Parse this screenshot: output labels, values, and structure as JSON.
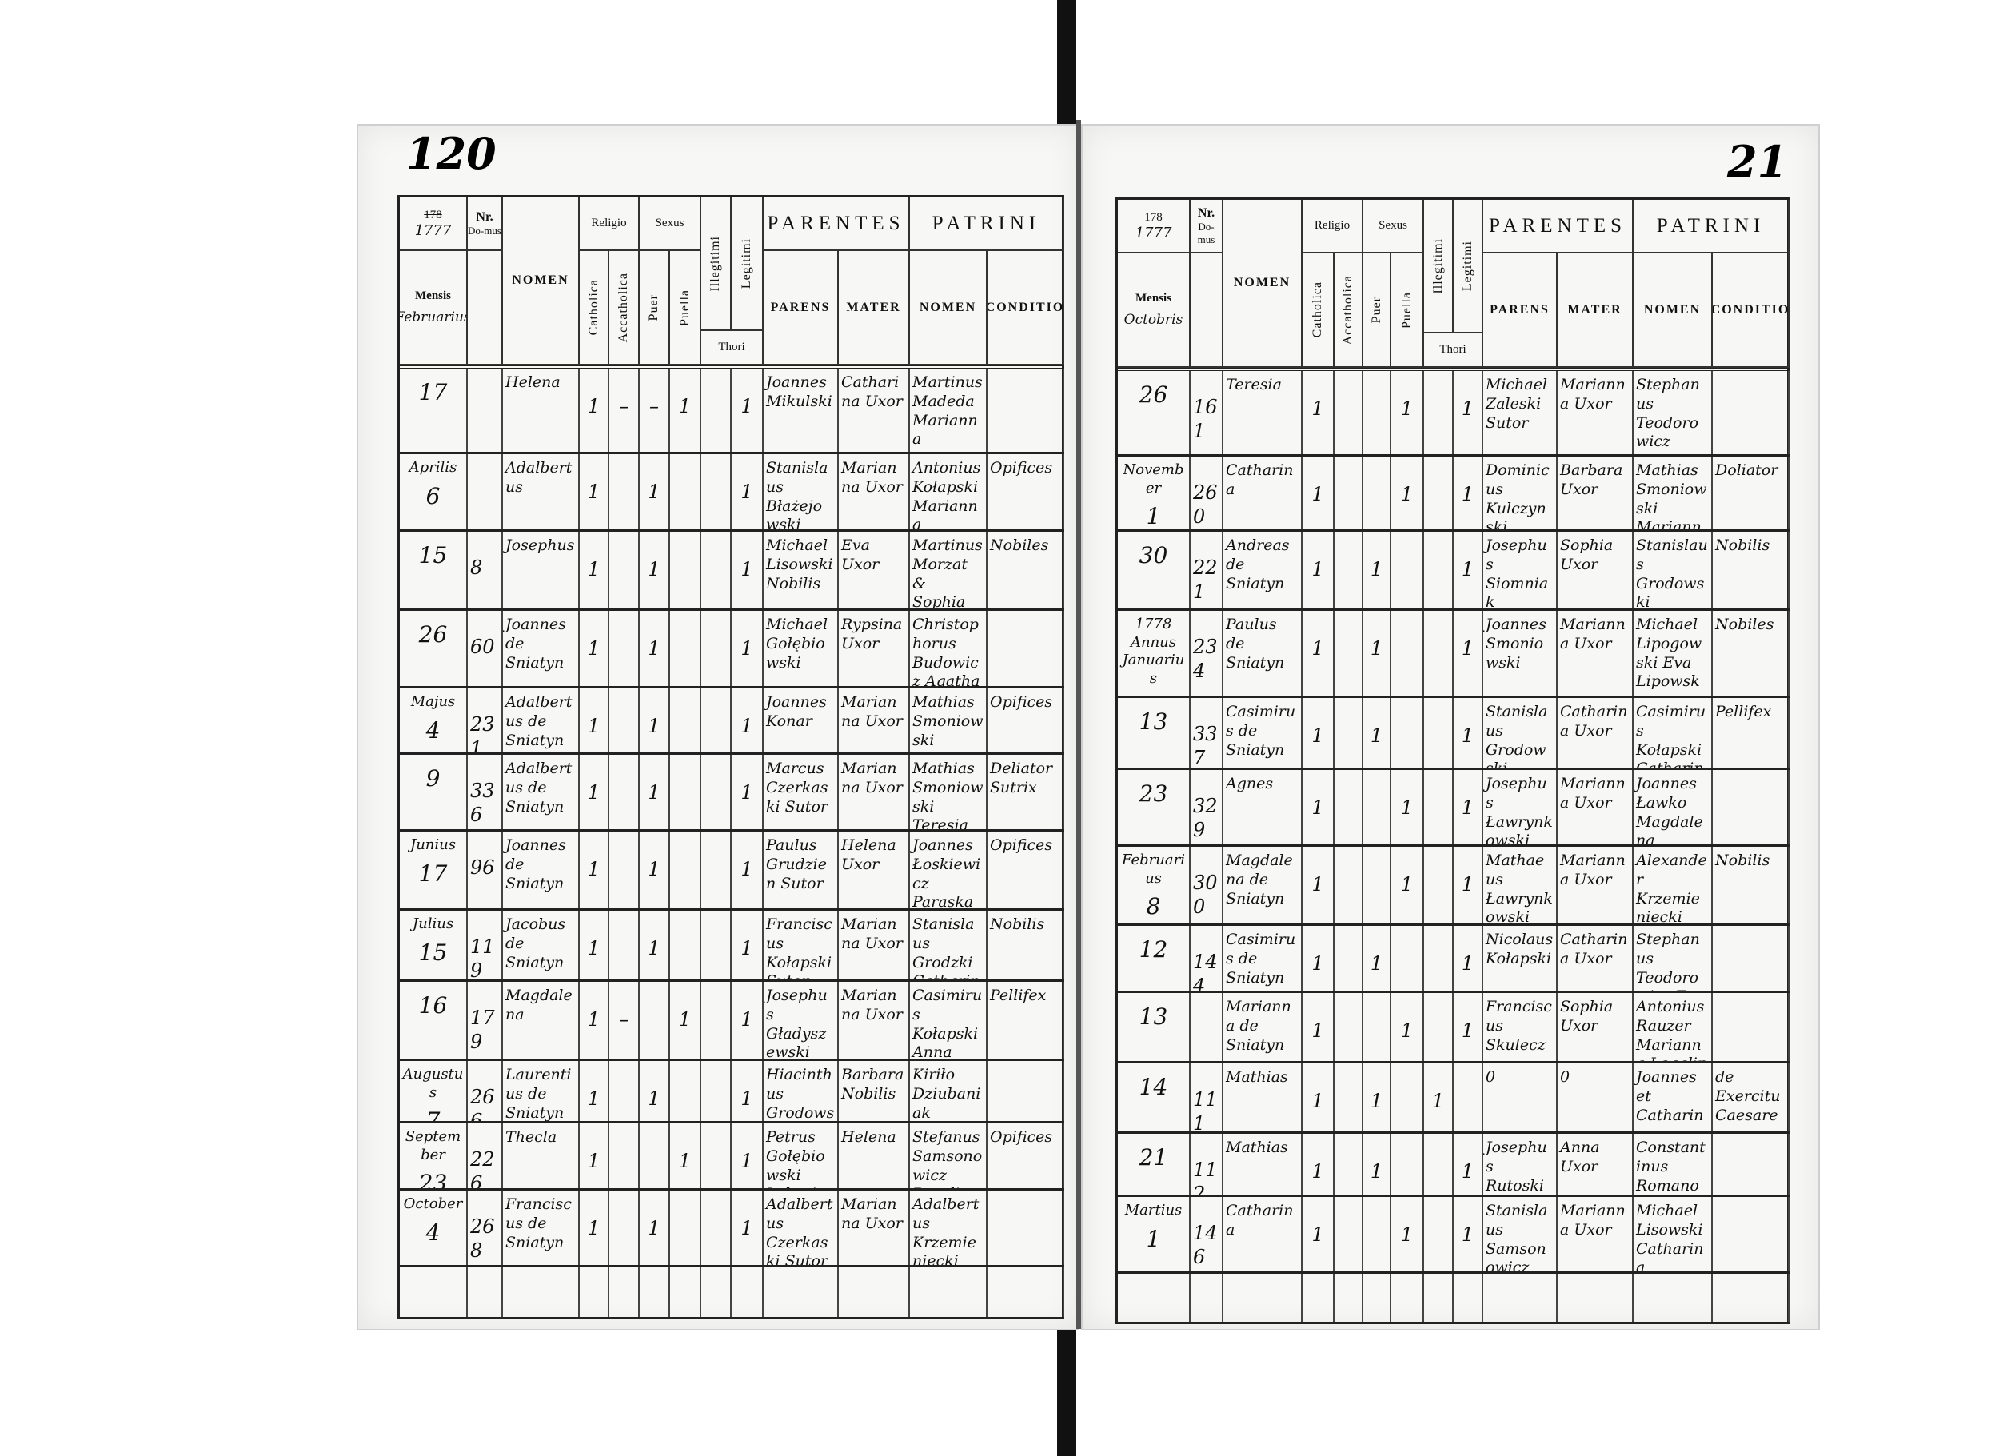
{
  "document": {
    "folio_left": "120",
    "folio_right": "21"
  },
  "header": {
    "year_printed": "178",
    "nr": "Nr.",
    "domus": "Do-mus",
    "mensis": "Mensis",
    "nomen": "NOMEN",
    "religio": "Religio",
    "catholica": "Catholica",
    "accatholica": "Accatholica",
    "sexus": "Sexus",
    "puer": "Puer",
    "puella": "Puella",
    "illegitimi": "Illegitimi",
    "legitimi": "Legitimi",
    "thori": "Thori",
    "parentes": "PARENTES",
    "parens": "PARENS",
    "mater": "MATER",
    "patrini": "PATRINI",
    "patrini_nomen": "NOMEN",
    "conditio": "CONDITIO"
  },
  "left_page": {
    "year_written": "1777",
    "month": "Februarius",
    "rows": [
      {
        "month": "",
        "day": "17",
        "domus": "",
        "nomen": "Helena",
        "catholica": "1",
        "accatholica": "–",
        "puer": "–",
        "puella": "1",
        "illegitimi": "",
        "legitimi": "1",
        "parens": "Joannes Mikulski",
        "mater": "Catharina Uxor",
        "patrini": "Martinus Madeda Marianna Chwiatowa",
        "conditio": ""
      },
      {
        "month": "Aprilis",
        "day": "6",
        "domus": "",
        "nomen": "Adalbertus",
        "catholica": "1",
        "accatholica": "",
        "puer": "1",
        "puella": "",
        "illegitimi": "",
        "legitimi": "1",
        "parens": "Stanislaus Błażejowski",
        "mater": "Marianna Uxor",
        "patrini": "Antonius Kołapski Marianna Konarowa",
        "conditio": "Opifices"
      },
      {
        "month": "",
        "day": "15",
        "domus": "8",
        "nomen": "Josephus",
        "catholica": "1",
        "accatholica": "",
        "puer": "1",
        "puella": "",
        "illegitimi": "",
        "legitimi": "1",
        "parens": "Michael Lisowski Nobilis",
        "mater": "Eva Uxor",
        "patrini": "Martinus Morzat & Sophia Koitowska",
        "conditio": "Nobiles"
      },
      {
        "month": "",
        "day": "26",
        "domus": "60",
        "nomen": "Joannes de Sniatyn",
        "catholica": "1",
        "accatholica": "",
        "puer": "1",
        "puella": "",
        "illegitimi": "",
        "legitimi": "1",
        "parens": "Michael Gołębiowski",
        "mater": "Rypsina Uxor",
        "patrini": "Christophorus Budowicz Agatha Zambowska",
        "conditio": ""
      },
      {
        "month": "Majus",
        "day": "4",
        "domus": "231",
        "nomen": "Adalbertus de Sniatyn",
        "catholica": "1",
        "accatholica": "",
        "puer": "1",
        "puella": "",
        "illegitimi": "",
        "legitimi": "1",
        "parens": "Joannes Konar",
        "mater": "Marianna Uxor",
        "patrini": "Mathias Smoniowski Victoria Sadowska",
        "conditio": "Opifices"
      },
      {
        "month": "",
        "day": "9",
        "domus": "336",
        "nomen": "Adalbertus de Sniatyn",
        "catholica": "1",
        "accatholica": "",
        "puer": "1",
        "puella": "",
        "illegitimi": "",
        "legitimi": "1",
        "parens": "Marcus Czerkaski Sutor",
        "mater": "Marianna Uxor",
        "patrini": "Mathias Smoniowski Teresia Huziatynska",
        "conditio": "Deliator Sutrix"
      },
      {
        "month": "Junius",
        "day": "17",
        "domus": "96",
        "nomen": "Joannes de Sniatyn",
        "catholica": "1",
        "accatholica": "",
        "puer": "1",
        "puella": "",
        "illegitimi": "",
        "legitimi": "1",
        "parens": "Paulus Grudzien Sutor",
        "mater": "Helena Uxor",
        "patrini": "Joannes Łoskiewicz Paraska Bryskiewiczowa",
        "conditio": "Opifices"
      },
      {
        "month": "Julius",
        "day": "15",
        "domus": "119",
        "nomen": "Jacobus de Sniatyn",
        "catholica": "1",
        "accatholica": "",
        "puer": "1",
        "puella": "",
        "illegitimi": "",
        "legitimi": "1",
        "parens": "Franciscus Kołapski Sutor",
        "mater": "Marianna Uxor",
        "patrini": "Stanislaus Grodzki Catharina Samsonowiczowa",
        "conditio": "Nobilis"
      },
      {
        "month": "",
        "day": "16",
        "domus": "179",
        "nomen": "Magdalena",
        "catholica": "1",
        "accatholica": "–",
        "puer": "",
        "puella": "1",
        "illegitimi": "",
        "legitimi": "1",
        "parens": "Josephus Gładyszewski",
        "mater": "Marianna Uxor",
        "patrini": "Casimirus Kołapski Anna Bugdanowa",
        "conditio": "Pellifex"
      },
      {
        "month": "Augustus",
        "day": "7",
        "domus": "266",
        "nomen": "Laurentius de Sniatyn",
        "catholica": "1",
        "accatholica": "",
        "puer": "1",
        "puella": "",
        "illegitimi": "",
        "legitimi": "1",
        "parens": "Hiacinthus Grodowski",
        "mater": "Barbara Nobilis",
        "patrini": "Kiriło Dziubaniak Magdalena Benefellowa",
        "conditio": ""
      },
      {
        "month": "September",
        "day": "23",
        "domus": "226",
        "nomen": "Thecla",
        "catholica": "1",
        "accatholica": "",
        "puer": "",
        "puella": "1",
        "illegitimi": "",
        "legitimi": "1",
        "parens": "Petrus Gołębiowski Laboriosus",
        "mater": "Helena",
        "patrini": "Stefanus Samsonowicz Rosalia Gutkowska",
        "conditio": "Opifices"
      },
      {
        "month": "October",
        "day": "4",
        "domus": "268",
        "nomen": "Franciscus de Sniatyn",
        "catholica": "1",
        "accatholica": "",
        "puer": "1",
        "puella": "",
        "illegitimi": "",
        "legitimi": "1",
        "parens": "Adalbertus Czerkaski Sutor",
        "mater": "Marianna Uxor",
        "patrini": "Adalbertus Krzemieniecki Catharina Samsonowiczowa",
        "conditio": ""
      }
    ]
  },
  "right_page": {
    "year_written": "1777",
    "month": "Octobris",
    "rows": [
      {
        "month": "",
        "day": "26",
        "domus": "161",
        "nomen": "Teresia",
        "catholica": "1",
        "accatholica": "",
        "puer": "",
        "puella": "1",
        "illegitimi": "",
        "legitimi": "1",
        "parens": "Michael Zaleski Sutor",
        "mater": "Marianna Uxor",
        "patrini": "Stephanus Teodorowicz Helena Łukienowa",
        "conditio": ""
      },
      {
        "month": "November",
        "day": "1",
        "domus": "260",
        "nomen": "Catharina",
        "catholica": "1",
        "accatholica": "",
        "puer": "",
        "puella": "1",
        "illegitimi": "",
        "legitimi": "1",
        "parens": "Dominicus Kulczynski",
        "mater": "Barbara Uxor",
        "patrini": "Mathias Smoniowski Marianna Pietowa",
        "conditio": "Doliator"
      },
      {
        "month": "",
        "day": "30",
        "domus": "221",
        "nomen": "Andreas de Sniatyn",
        "catholica": "1",
        "accatholica": "",
        "puer": "1",
        "puella": "",
        "illegitimi": "",
        "legitimi": "1",
        "parens": "Josephus Siomniak Doliatores",
        "mater": "Sophia Uxor",
        "patrini": "Stanislaus Grodowski Marianna Pietowa",
        "conditio": "Nobilis"
      },
      {
        "month": "1778 Annus Januarius",
        "day": "13",
        "domus": "234",
        "nomen": "Paulus de Sniatyn",
        "catholica": "1",
        "accatholica": "",
        "puer": "1",
        "puella": "",
        "illegitimi": "",
        "legitimi": "1",
        "parens": "Joannes Smoniowski",
        "mater": "Marianna Uxor",
        "patrini": "Michael Lipogowski Eva Lipowska",
        "conditio": "Nobiles"
      },
      {
        "month": "",
        "day": "13",
        "domus": "337",
        "nomen": "Casimirus de Sniatyn",
        "catholica": "1",
        "accatholica": "",
        "puer": "1",
        "puella": "",
        "illegitimi": "",
        "legitimi": "1",
        "parens": "Stanislaus Grodowski",
        "mater": "Catharina Uxor",
        "patrini": "Casimirus Kołapski Catharina Samsonowiczowa",
        "conditio": "Pellifex"
      },
      {
        "month": "",
        "day": "23",
        "domus": "329",
        "nomen": "Agnes",
        "catholica": "1",
        "accatholica": "",
        "puer": "",
        "puella": "1",
        "illegitimi": "",
        "legitimi": "1",
        "parens": "Josephus Ławrynkowski",
        "mater": "Marianna Uxor",
        "patrini": "Joannes Ławko Magdalena Koitowska",
        "conditio": ""
      },
      {
        "month": "Februarius",
        "day": "8",
        "domus": "300",
        "nomen": "Magdalena de Sniatyn",
        "catholica": "1",
        "accatholica": "",
        "puer": "",
        "puella": "1",
        "illegitimi": "",
        "legitimi": "1",
        "parens": "Mathaeus Ławrynkowski",
        "mater": "Marianna Uxor",
        "patrini": "Alexander Krzemieniecki Eva Lipowska",
        "conditio": "Nobilis"
      },
      {
        "month": "",
        "day": "12",
        "domus": "144",
        "nomen": "Casimirus de Sniatyn",
        "catholica": "1",
        "accatholica": "",
        "puer": "1",
        "puella": "",
        "illegitimi": "",
        "legitimi": "1",
        "parens": "Nicolaus Kołapski",
        "mater": "Catharina Uxor",
        "patrini": "Stephanus Teodorowicz Eva Lipowska",
        "conditio": ""
      },
      {
        "month": "",
        "day": "13",
        "domus": "",
        "nomen": "Marianna de Sniatyn",
        "catholica": "1",
        "accatholica": "",
        "puer": "",
        "puella": "1",
        "illegitimi": "",
        "legitimi": "1",
        "parens": "Franciscus Skulecz",
        "mater": "Sophia Uxor",
        "patrini": "Antonius Rauzer Marianna Legalin",
        "conditio": ""
      },
      {
        "month": "",
        "day": "14",
        "domus": "111",
        "nomen": "Mathias",
        "catholica": "1",
        "accatholica": "",
        "puer": "1",
        "puella": "",
        "illegitimi": "1",
        "legitimi": "",
        "parens": "0",
        "mater": "0",
        "patrini": "Joannes et Catharina Vinhorsy",
        "conditio": "de Exercitu Caesareo"
      },
      {
        "month": "",
        "day": "21",
        "domus": "112",
        "nomen": "Mathias",
        "catholica": "1",
        "accatholica": "",
        "puer": "1",
        "puella": "",
        "illegitimi": "",
        "legitimi": "1",
        "parens": "Josephus Rutoski",
        "mater": "Anna Uxor",
        "patrini": "Constantinus Romanowicz Marianna Markowska",
        "conditio": ""
      },
      {
        "month": "Martius",
        "day": "1",
        "domus": "146",
        "nomen": "Catharina",
        "catholica": "1",
        "accatholica": "",
        "puer": "",
        "puella": "1",
        "illegitimi": "",
        "legitimi": "1",
        "parens": "Stanislaus Samsonowicz",
        "mater": "Marianna Uxor",
        "patrini": "Michael Lisowski Catharina Samsonowiczowa",
        "conditio": ""
      }
    ]
  }
}
